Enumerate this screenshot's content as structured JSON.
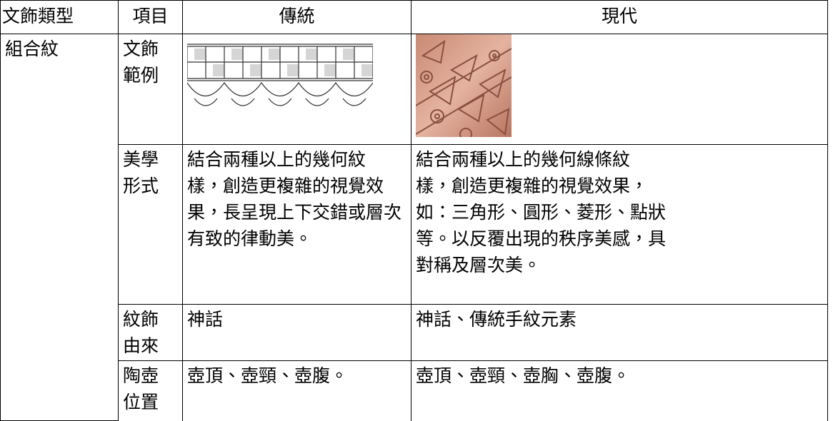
{
  "table": {
    "header": [
      "文飾類型",
      "項目",
      "傳統",
      "現代"
    ],
    "group": "組合紋",
    "rows": [
      {
        "item": [
          "文飾",
          "範例"
        ]
      },
      {
        "item": [
          "美學",
          "形式"
        ],
        "traditional": [
          "結合兩種以上的幾何紋",
          "樣，創造更複雜的視覺效",
          "果，長呈現上下交錯或層次",
          "有致的律動美。"
        ],
        "modern": [
          "結合兩種以上的幾何線條紋",
          "樣，創造更複雜的視覺效果，",
          "如：三角形、圓形、菱形、點狀",
          "等。以反覆出現的秩序美感，具",
          "對稱及層次美。"
        ]
      },
      {
        "item": [
          "紋飾",
          "由來"
        ],
        "traditional": [
          "神話"
        ],
        "modern": [
          "神話、傳統手紋元素"
        ]
      },
      {
        "item": [
          "陶壺",
          "位置"
        ],
        "traditional": [
          "壺頂、壺頸、壺腹。"
        ],
        "modern": [
          "壺頂、壺頸、壺胸、壺腹。"
        ]
      }
    ]
  }
}
